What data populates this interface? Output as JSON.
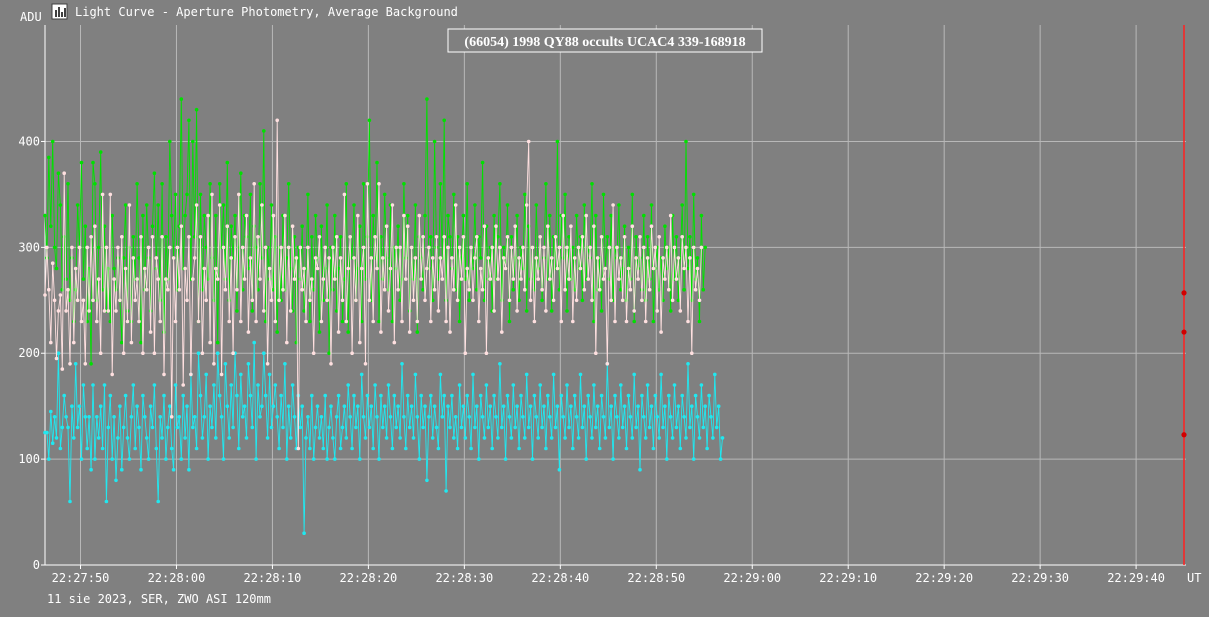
{
  "window": {
    "header_text": "Light Curve - Aperture Photometry, Average Background",
    "icon": "chart-icon"
  },
  "footer": {
    "text": "11 sie 2023, SER, ZWO ASI 120mm"
  },
  "colors": {
    "background": "#808080",
    "grid": "#b8b8b8",
    "target": "#ffe0e0",
    "comparison_1": "#00e000",
    "comparison_2": "#20e8f0",
    "cursor": "#ff2020",
    "marker": "#d00000"
  },
  "chart_data": {
    "type": "line",
    "title": "(66054) 1998 QY88 occults UCAC4 339-168918",
    "ylabel": "ADU",
    "xlabel": "UT",
    "ylim": [
      0,
      510
    ],
    "xlim": [
      "22:27:46.3",
      "22:29:45.2"
    ],
    "y_ticks": [
      "0",
      "100",
      "200",
      "300",
      "400"
    ],
    "x_ticks": [
      "22:27:50",
      "22:28:00",
      "22:28:10",
      "22:28:20",
      "22:28:30",
      "22:28:40",
      "22:28:50",
      "22:29:00",
      "22:29:10",
      "22:29:20",
      "22:29:30",
      "22:29:40"
    ],
    "grid": true,
    "x_start": "22:27:46.3",
    "x_step_s": 0.2,
    "series": [
      {
        "color_key": "comparison_1",
        "values": [
          330,
          290,
          385,
          320,
          400,
          300,
          280,
          370,
          340,
          260,
          310,
          270,
          360,
          250,
          290,
          230,
          260,
          340,
          300,
          380,
          270,
          320,
          230,
          280,
          190,
          380,
          360,
          250,
          300,
          390,
          260,
          320,
          240,
          280,
          230,
          330,
          280,
          260,
          290,
          250,
          210,
          290,
          340,
          240,
          300,
          230,
          310,
          270,
          360,
          290,
          210,
          330,
          260,
          340,
          290,
          240,
          320,
          370,
          280,
          340,
          250,
          360,
          220,
          310,
          270,
          400,
          330,
          290,
          350,
          260,
          320,
          440,
          280,
          330,
          350,
          420,
          270,
          400,
          310,
          430,
          230,
          350,
          260,
          330,
          300,
          270,
          360,
          290,
          250,
          330,
          210,
          360,
          300,
          340,
          270,
          380,
          250,
          320,
          290,
          330,
          240,
          300,
          370,
          260,
          330,
          310,
          280,
          350,
          240,
          320,
          300,
          260,
          360,
          290,
          410,
          230,
          300,
          270,
          340,
          260,
          310,
          220,
          300,
          250,
          330,
          260,
          290,
          360,
          280,
          240,
          310,
          210,
          300,
          270,
          320,
          240,
          280,
          350,
          230,
          310,
          260,
          330,
          290,
          220,
          320,
          250,
          280,
          340,
          200,
          300,
          260,
          330,
          240,
          280,
          310,
          230,
          270,
          360,
          220,
          310,
          290,
          340,
          250,
          280,
          320,
          230,
          360,
          270,
          310,
          420,
          250,
          330,
          290,
          380,
          230,
          310,
          270,
          350,
          290,
          260,
          340,
          230,
          300,
          280,
          320,
          250,
          270,
          360,
          290,
          330,
          240,
          300,
          270,
          340,
          220,
          310,
          290,
          260,
          330,
          440,
          280,
          310,
          250,
          400,
          300,
          270,
          360,
          290,
          420,
          250,
          330,
          310,
          280,
          350,
          260,
          310,
          230,
          290,
          330,
          270,
          360,
          250,
          300,
          280,
          340,
          260,
          310,
          290,
          380,
          250,
          320,
          270,
          300,
          240,
          330,
          270,
          310,
          360,
          250,
          300,
          280,
          340,
          230,
          310,
          260,
          290,
          330,
          250,
          300,
          280,
          350,
          240,
          320,
          270,
          300,
          260,
          340,
          280,
          310,
          250,
          290,
          360,
          270,
          330,
          240,
          310,
          280,
          400,
          260,
          330,
          290,
          350,
          240,
          310,
          270,
          300,
          260,
          330,
          280,
          310,
          250,
          340,
          270,
          300,
          290,
          360,
          230,
          330,
          260,
          290,
          240,
          350,
          280,
          310,
          270,
          330,
          250,
          300,
          290,
          340,
          260,
          280,
          320,
          250,
          300,
          270,
          350,
          230,
          310,
          280,
          290,
          260,
          330,
          250,
          310,
          270,
          340,
          230,
          280,
          300,
          260,
          290,
          250,
          320,
          280,
          300,
          240,
          330,
          270,
          310,
          250,
          290,
          340,
          260,
          400,
          280,
          310,
          250,
          350,
          270,
          290,
          230,
          330,
          260,
          300
        ]
      },
      {
        "color_key": "target",
        "values": [
          255,
          300,
          260,
          210,
          285,
          250,
          195,
          240,
          255,
          185,
          370,
          240,
          260,
          190,
          300,
          210,
          280,
          250,
          300,
          230,
          250,
          190,
          300,
          240,
          310,
          250,
          320,
          230,
          270,
          200,
          350,
          240,
          300,
          240,
          350,
          180,
          270,
          240,
          300,
          250,
          310,
          200,
          280,
          230,
          340,
          210,
          290,
          250,
          270,
          230,
          310,
          200,
          280,
          260,
          300,
          220,
          310,
          200,
          290,
          270,
          230,
          310,
          180,
          270,
          260,
          300,
          140,
          290,
          230,
          300,
          260,
          320,
          170,
          280,
          250,
          310,
          180,
          270,
          290,
          340,
          230,
          310,
          200,
          280,
          250,
          330,
          210,
          350,
          190,
          280,
          270,
          340,
          180,
          300,
          260,
          320,
          230,
          290,
          200,
          310,
          260,
          350,
          230,
          300,
          270,
          330,
          220,
          290,
          250,
          360,
          230,
          310,
          270,
          340,
          240,
          300,
          190,
          280,
          250,
          330,
          230,
          420,
          250,
          300,
          260,
          330,
          210,
          300,
          240,
          320,
          270,
          290,
          110,
          300,
          260,
          280,
          230,
          300,
          250,
          270,
          200,
          290,
          280,
          310,
          230,
          270,
          300,
          250,
          290,
          190,
          300,
          270,
          310,
          220,
          290,
          250,
          350,
          230,
          280,
          310,
          200,
          290,
          250,
          330,
          210,
          280,
          300,
          190,
          360,
          250,
          290,
          230,
          310,
          280,
          360,
          220,
          290,
          260,
          320,
          240,
          280,
          340,
          210,
          300,
          260,
          300,
          230,
          330,
          270,
          320,
          220,
          300,
          250,
          290,
          230,
          330,
          270,
          310,
          250,
          280,
          300,
          230,
          290,
          260,
          310,
          240,
          290,
          270,
          310,
          230,
          300,
          220,
          290,
          260,
          340,
          250,
          300,
          270,
          310,
          200,
          280,
          260,
          300,
          250,
          290,
          310,
          230,
          280,
          260,
          320,
          200,
          290,
          270,
          300,
          240,
          320,
          270,
          300,
          220,
          290,
          280,
          310,
          250,
          300,
          270,
          320,
          240,
          290,
          270,
          300,
          260,
          340,
          400,
          250,
          300,
          230,
          290,
          270,
          310,
          260,
          300,
          240,
          320,
          270,
          290,
          250,
          310,
          280,
          300,
          230,
          330,
          260,
          300,
          270,
          320,
          230,
          290,
          250,
          300,
          280,
          310,
          260,
          330,
          270,
          300,
          250,
          320,
          200,
          290,
          260,
          310,
          270,
          280,
          190,
          300,
          250,
          340,
          230,
          300,
          270,
          290,
          250,
          310,
          230,
          280,
          260,
          320,
          240,
          290,
          270,
          310,
          250,
          300,
          230,
          290,
          260,
          320,
          280,
          300,
          240,
          310,
          220,
          290,
          270,
          300,
          260,
          330,
          250,
          300,
          270,
          290,
          240,
          310,
          280,
          300,
          230,
          290,
          200,
          300,
          260,
          280,
          250,
          300
        ]
      },
      {
        "color_key": "comparison_2",
        "values": [
          125,
          125,
          100,
          145,
          115,
          140,
          120,
          200,
          110,
          130,
          160,
          140,
          130,
          60,
          150,
          120,
          190,
          130,
          150,
          100,
          170,
          140,
          110,
          140,
          90,
          170,
          100,
          140,
          120,
          150,
          110,
          170,
          60,
          130,
          160,
          100,
          140,
          80,
          120,
          150,
          90,
          130,
          160,
          120,
          100,
          140,
          170,
          110,
          150,
          130,
          90,
          160,
          140,
          120,
          100,
          150,
          130,
          170,
          110,
          60,
          140,
          120,
          160,
          100,
          130,
          150,
          110,
          90,
          170,
          130,
          140,
          100,
          160,
          120,
          150,
          90,
          180,
          130,
          140,
          110,
          200,
          160,
          120,
          140,
          180,
          100,
          150,
          130,
          170,
          120,
          200,
          160,
          140,
          100,
          190,
          150,
          120,
          170,
          130,
          200,
          160,
          110,
          180,
          140,
          150,
          120,
          190,
          160,
          130,
          210,
          100,
          170,
          140,
          150,
          200,
          160,
          120,
          180,
          130,
          150,
          170,
          140,
          110,
          160,
          130,
          190,
          100,
          150,
          120,
          170,
          140,
          110,
          160,
          130,
          150,
          30,
          120,
          140,
          110,
          160,
          100,
          130,
          150,
          120,
          140,
          110,
          160,
          100,
          130,
          150,
          120,
          100,
          140,
          160,
          110,
          130,
          150,
          120,
          170,
          140,
          110,
          160,
          130,
          150,
          100,
          180,
          140,
          120,
          160,
          130,
          150,
          110,
          170,
          140,
          100,
          160,
          130,
          150,
          120,
          170,
          140,
          110,
          160,
          130,
          150,
          120,
          190,
          140,
          110,
          160,
          130,
          150,
          120,
          180,
          140,
          100,
          160,
          130,
          150,
          80,
          140,
          160,
          120,
          150,
          130,
          110,
          180,
          140,
          160,
          70,
          150,
          130,
          160,
          120,
          140,
          110,
          170,
          130,
          150,
          120,
          160,
          140,
          110,
          180,
          130,
          150,
          100,
          160,
          140,
          120,
          170,
          130,
          150,
          110,
          160,
          140,
          120,
          190,
          130,
          150,
          100,
          160,
          140,
          120,
          170,
          130,
          150,
          110,
          160,
          140,
          120,
          180,
          130,
          150,
          100,
          160,
          140,
          120,
          170,
          130,
          150,
          110,
          160,
          140,
          120,
          180,
          130,
          150,
          90,
          160,
          140,
          120,
          170,
          130,
          150,
          110,
          160,
          140,
          120,
          180,
          130,
          150,
          100,
          160,
          140,
          120,
          170,
          130,
          150,
          110,
          160,
          140,
          120,
          190,
          130,
          150,
          100,
          160,
          140,
          120,
          170,
          130,
          150,
          110,
          160,
          140,
          120,
          180,
          130,
          150,
          90,
          160,
          140,
          120,
          170,
          130,
          150,
          110,
          160,
          140,
          120,
          180,
          130,
          150,
          100,
          160,
          140,
          120,
          170,
          130,
          150,
          110,
          160,
          140,
          120,
          190,
          130,
          150,
          100,
          160,
          140,
          120,
          170,
          130,
          150,
          110,
          160,
          140,
          120,
          180,
          130,
          150,
          100,
          120
        ]
      }
    ],
    "end_markers": [
      257,
      220,
      123
    ]
  }
}
